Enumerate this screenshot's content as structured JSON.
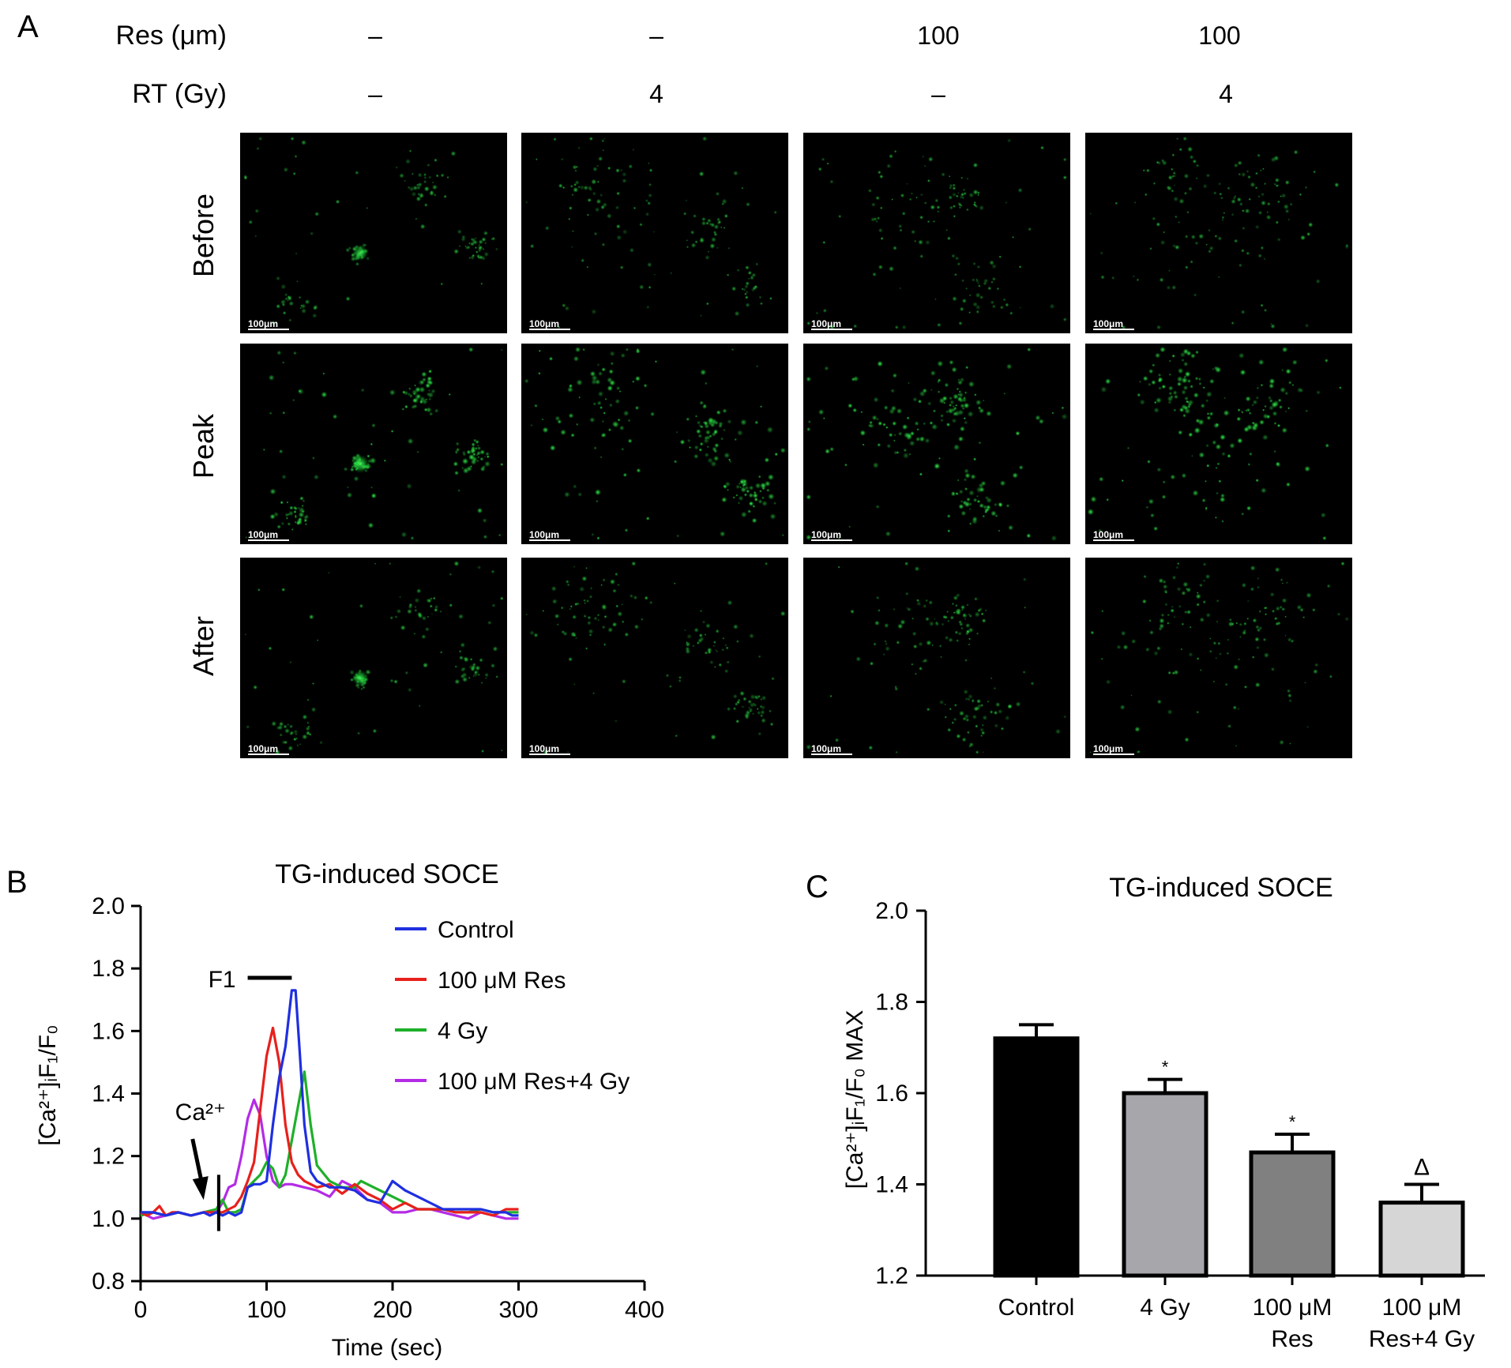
{
  "panel_labels": {
    "a": "A",
    "b": "B",
    "c": "C"
  },
  "colors": {
    "control": "#1f2fe0",
    "res": "#e8201c",
    "gy4": "#1eb02a",
    "res_gy4": "#b42be6",
    "fluor": "#1fd13a",
    "bar_control": "#000000",
    "bar_gy4": "#a6a6ab",
    "bar_res": "#808080",
    "bar_res_gy4": "#d6d6d6"
  },
  "panelA": {
    "row_headers": [
      {
        "label": "Res (μm)",
        "values": [
          "–",
          "–",
          "100",
          "100"
        ]
      },
      {
        "label": "RT (Gy)",
        "values": [
          "–",
          "4",
          "–",
          "4"
        ]
      }
    ],
    "row_labels": [
      "Before",
      "Peak",
      "After"
    ],
    "scale_bar_label": "100μm"
  },
  "chart_data": [
    {
      "type": "line",
      "title": "TG-induced SOCE",
      "xlabel": "Time (sec)",
      "ylabel": "[Ca²⁺]ᵢF₁/F₀",
      "xlim": [
        0,
        400
      ],
      "ylim": [
        0.8,
        2.0
      ],
      "xticks": [
        0,
        100,
        200,
        300,
        400
      ],
      "yticks": [
        0.8,
        1.0,
        1.2,
        1.4,
        1.6,
        1.8,
        2.0
      ],
      "xtick_labels": [
        "0",
        "100",
        "200",
        "300",
        "400"
      ],
      "ytick_labels": [
        "0.8",
        "1.0",
        "1.2",
        "1.4",
        "1.6",
        "1.8",
        "2.0"
      ],
      "legend_position": "top-right",
      "annotations": {
        "f1_label": "F1",
        "f1_bar_x": [
          85,
          120
        ],
        "f1_bar_y": 1.77,
        "ca_label": "Ca²⁺",
        "ca_arrow_x": 45,
        "ca_arrow_y": [
          1.29,
          1.06
        ],
        "marker_x": 62,
        "marker_y": [
          0.96,
          1.14
        ]
      },
      "series": [
        {
          "name": "Control",
          "color_key": "control",
          "x": [
            0,
            10,
            20,
            30,
            40,
            50,
            55,
            60,
            65,
            70,
            75,
            80,
            85,
            90,
            95,
            100,
            105,
            110,
            115,
            120,
            123,
            126,
            130,
            135,
            140,
            150,
            160,
            170,
            180,
            190,
            200,
            210,
            220,
            230,
            240,
            250,
            260,
            270,
            280,
            290,
            295,
            300
          ],
          "y": [
            1.02,
            1.02,
            1.01,
            1.02,
            1.01,
            1.02,
            1.01,
            1.02,
            1.01,
            1.02,
            1.01,
            1.02,
            1.1,
            1.11,
            1.11,
            1.12,
            1.3,
            1.45,
            1.55,
            1.73,
            1.73,
            1.55,
            1.3,
            1.15,
            1.12,
            1.1,
            1.1,
            1.09,
            1.06,
            1.05,
            1.12,
            1.09,
            1.07,
            1.05,
            1.03,
            1.03,
            1.03,
            1.03,
            1.02,
            1.02,
            1.01,
            1.01
          ]
        },
        {
          "name": "100 μM Res",
          "color_key": "res",
          "x": [
            0,
            5,
            10,
            15,
            20,
            25,
            30,
            40,
            50,
            60,
            65,
            70,
            75,
            80,
            85,
            90,
            95,
            100,
            105,
            110,
            115,
            120,
            125,
            130,
            140,
            150,
            160,
            170,
            180,
            190,
            200,
            210,
            220,
            230,
            240,
            250,
            260,
            270,
            280,
            290,
            300
          ],
          "y": [
            1.02,
            1.01,
            1.02,
            1.04,
            1.01,
            1.02,
            1.02,
            1.01,
            1.02,
            1.02,
            1.02,
            1.03,
            1.04,
            1.07,
            1.12,
            1.18,
            1.35,
            1.52,
            1.61,
            1.5,
            1.3,
            1.18,
            1.14,
            1.12,
            1.1,
            1.11,
            1.08,
            1.11,
            1.08,
            1.06,
            1.03,
            1.05,
            1.03,
            1.03,
            1.03,
            1.02,
            1.02,
            1.02,
            1.01,
            1.03,
            1.03
          ]
        },
        {
          "name": "4 Gy",
          "color_key": "gy4",
          "x": [
            0,
            10,
            20,
            30,
            40,
            50,
            60,
            65,
            70,
            75,
            80,
            85,
            90,
            95,
            100,
            105,
            110,
            115,
            120,
            125,
            130,
            135,
            140,
            150,
            160,
            170,
            175,
            180,
            190,
            200,
            210,
            220,
            230,
            240,
            250,
            260,
            270,
            280,
            290,
            300
          ],
          "y": [
            1.01,
            1.02,
            1.01,
            1.02,
            1.01,
            1.02,
            1.03,
            1.06,
            1.02,
            1.02,
            1.03,
            1.1,
            1.12,
            1.14,
            1.18,
            1.16,
            1.1,
            1.14,
            1.25,
            1.36,
            1.47,
            1.3,
            1.17,
            1.12,
            1.1,
            1.1,
            1.12,
            1.11,
            1.09,
            1.07,
            1.05,
            1.03,
            1.03,
            1.03,
            1.02,
            1.02,
            1.03,
            1.02,
            1.02,
            1.02
          ]
        },
        {
          "name": "100 μM Res+4 Gy",
          "color_key": "res_gy4",
          "x": [
            0,
            10,
            20,
            30,
            40,
            50,
            60,
            65,
            70,
            75,
            80,
            85,
            90,
            95,
            100,
            105,
            110,
            115,
            120,
            130,
            140,
            150,
            160,
            170,
            180,
            190,
            200,
            210,
            220,
            230,
            240,
            250,
            260,
            270,
            280,
            290,
            300
          ],
          "y": [
            1.02,
            1.0,
            1.01,
            1.02,
            1.01,
            1.02,
            1.02,
            1.05,
            1.1,
            1.11,
            1.2,
            1.32,
            1.38,
            1.33,
            1.2,
            1.12,
            1.1,
            1.11,
            1.11,
            1.1,
            1.09,
            1.07,
            1.12,
            1.1,
            1.06,
            1.05,
            1.02,
            1.02,
            1.03,
            1.03,
            1.02,
            1.01,
            1.0,
            1.02,
            1.01,
            1.0,
            1.0
          ]
        }
      ]
    },
    {
      "type": "bar",
      "title": "TG-induced SOCE",
      "ylabel": "[Ca²⁺]ᵢF₁/F₀ MAX",
      "ylim": [
        1.2,
        2.0
      ],
      "yticks": [
        1.2,
        1.4,
        1.6,
        1.8,
        2.0
      ],
      "ytick_labels": [
        "1.2",
        "1.4",
        "1.6",
        "1.8",
        "2.0"
      ],
      "categories": [
        [
          "Control"
        ],
        [
          "4 Gy"
        ],
        [
          "100 μM",
          "Res"
        ],
        [
          "100 μM",
          "Res+4 Gy"
        ]
      ],
      "values": [
        1.72,
        1.6,
        1.47,
        1.36
      ],
      "errors": [
        0.03,
        0.03,
        0.04,
        0.04
      ],
      "bar_color_keys": [
        "bar_control",
        "bar_gy4",
        "bar_res",
        "bar_res_gy4"
      ],
      "significance": [
        "",
        "*",
        "*",
        "Δ"
      ]
    }
  ]
}
